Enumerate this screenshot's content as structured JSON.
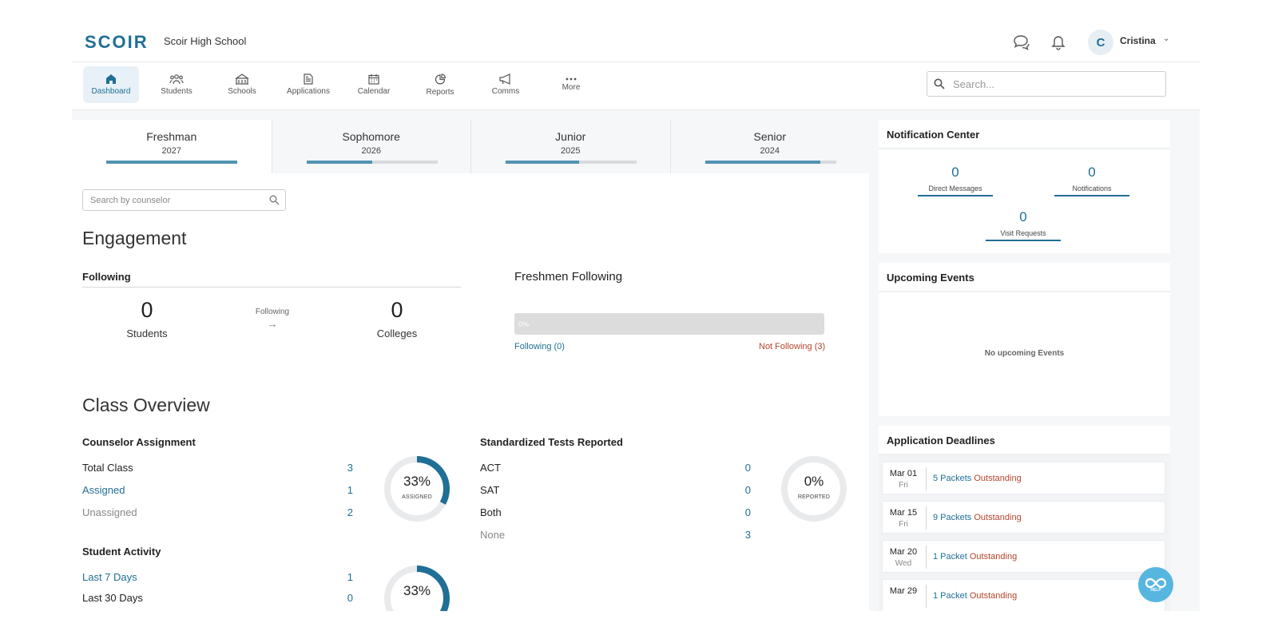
{
  "header": {
    "logo": "SCOIR",
    "school_name": "Scoir High School",
    "user_initial": "C",
    "user_name": "Cristina"
  },
  "nav": {
    "items": [
      {
        "label": "Dashboard",
        "icon": "home-icon"
      },
      {
        "label": "Students",
        "icon": "students-icon"
      },
      {
        "label": "Schools",
        "icon": "schools-icon"
      },
      {
        "label": "Applications",
        "icon": "document-icon"
      },
      {
        "label": "Calendar",
        "icon": "calendar-icon"
      },
      {
        "label": "Reports",
        "icon": "chart-pie-icon"
      },
      {
        "label": "Comms",
        "icon": "megaphone-icon"
      },
      {
        "label": "More",
        "icon": "more-icon"
      }
    ],
    "search_placeholder": "Search..."
  },
  "class_tabs": [
    {
      "name": "Freshman",
      "year": "2027",
      "progress": 1.0
    },
    {
      "name": "Sophomore",
      "year": "2026",
      "progress": 0.5
    },
    {
      "name": "Junior",
      "year": "2025",
      "progress": 0.56
    },
    {
      "name": "Senior",
      "year": "2024",
      "progress": 0.88
    }
  ],
  "counselor_search_placeholder": "Search by counselor",
  "engagement": {
    "title": "Engagement",
    "following_heading": "Following",
    "students_count": "0",
    "students_label": "Students",
    "arrow_label": "Following",
    "arrow_glyph": "→",
    "colleges_count": "0",
    "colleges_label": "Colleges",
    "freshmen_title": "Freshmen Following",
    "bar_text": "0%",
    "following_link": "Following (0)",
    "not_following_link": "Not Following (3)"
  },
  "class_overview": {
    "title": "Class Overview",
    "counselor": {
      "heading": "Counselor Assignment",
      "rows": [
        {
          "label": "Total Class",
          "value": "3"
        },
        {
          "label": "Assigned",
          "value": "1"
        },
        {
          "label": "Unassigned",
          "value": "2"
        }
      ],
      "donut_percent": "33%",
      "donut_label": "ASSIGNED",
      "fraction": 0.33
    },
    "tests": {
      "heading": "Standardized Tests Reported",
      "rows": [
        {
          "label": "ACT",
          "value": "0"
        },
        {
          "label": "SAT",
          "value": "0"
        },
        {
          "label": "Both",
          "value": "0"
        },
        {
          "label": "None",
          "value": "3"
        }
      ],
      "donut_percent": "0%",
      "donut_label": "REPORTED",
      "fraction": 0
    },
    "activity": {
      "heading": "Student Activity",
      "rows": [
        {
          "label": "Last 7 Days",
          "value": "1"
        },
        {
          "label": "Last 30 Days",
          "value": "0"
        }
      ],
      "donut_percent": "33%",
      "fraction": 0.33
    }
  },
  "notification_center": {
    "title": "Notification Center",
    "direct_messages": {
      "count": "0",
      "label": "Direct Messages"
    },
    "notifications": {
      "count": "0",
      "label": "Notifications"
    },
    "visit_requests": {
      "count": "0",
      "label": "Visit Requests"
    }
  },
  "upcoming_events": {
    "title": "Upcoming Events",
    "empty_text": "No upcoming Events"
  },
  "application_deadlines": {
    "title": "Application Deadlines",
    "items": [
      {
        "date": "Mar 01",
        "day": "Fri",
        "packets": "5 Packets",
        "status": "Outstanding"
      },
      {
        "date": "Mar 15",
        "day": "Fri",
        "packets": "9 Packets",
        "status": "Outstanding"
      },
      {
        "date": "Mar 20",
        "day": "Wed",
        "packets": "1 Packet",
        "status": "Outstanding"
      },
      {
        "date": "Mar 29",
        "day": "",
        "packets": "1 Packet",
        "status": "Outstanding"
      }
    ]
  },
  "help_label": "HELP",
  "colors": {
    "brand": "#1f6f96",
    "accent_light": "#4f93b3",
    "danger": "#b5452c",
    "help": "#57b6e0"
  }
}
